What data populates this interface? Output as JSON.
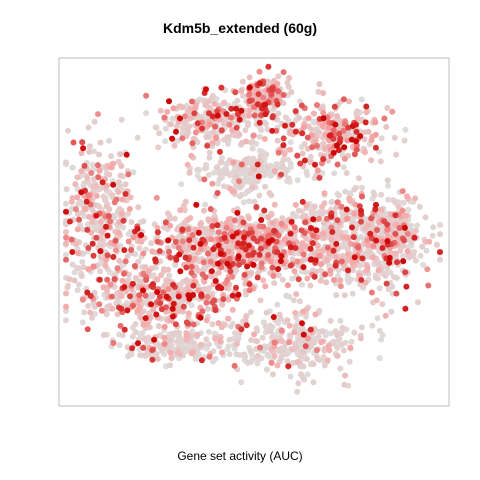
{
  "chart_data": {
    "type": "scatter",
    "title": "Kdm5b_extended (60g)",
    "xlabel": "Gene set activity (AUC)",
    "ylabel": "",
    "axes_visible": false,
    "grid": false,
    "legend": "none",
    "colors": {
      "low": "#dddddd",
      "mid": "#f6a8a8",
      "high": "#cc0000",
      "frame": "#bdbdbd"
    },
    "point_count": 3600,
    "value_range": [
      0,
      1
    ]
  }
}
